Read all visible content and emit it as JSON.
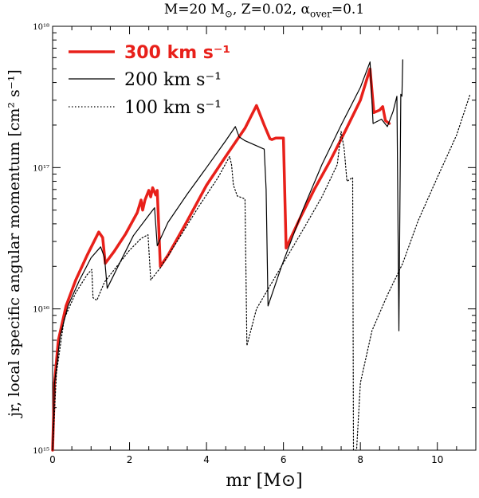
{
  "chart_data": {
    "type": "line",
    "title": "M=20 M⊙, Z=0.02, αover=0.1",
    "title_parts": {
      "mass": "M=20 M",
      "sun": "⊙",
      "z": ", Z=0.02, α",
      "sub": "over",
      "value": "=0.1"
    },
    "xlabel": "mr [M⊙]",
    "ylabel": "jr, local specific angular momentum [cm² s⁻¹]",
    "xlim": [
      0,
      11
    ],
    "ylim": [
      1000000000000000.0,
      1e+18
    ],
    "yscale": "log",
    "x_ticks": [
      "0",
      "2",
      "4",
      "6",
      "8",
      "10"
    ],
    "y_ticks": [
      "10¹⁵",
      "10¹⁶",
      "10¹⁷",
      "10¹⁸"
    ],
    "legend_position": "top-left",
    "series": [
      {
        "name": "300 km s⁻¹",
        "color": "#e8201a",
        "style": "thick",
        "points": [
          [
            0,
            1000000000000000.0
          ],
          [
            0.05,
            3000000000000000.0
          ],
          [
            0.15,
            6000000000000000.0
          ],
          [
            0.35,
            1.05e+16
          ],
          [
            0.6,
            1.6e+16
          ],
          [
            0.9,
            2.4e+16
          ],
          [
            1.2,
            3.5e+16
          ],
          [
            1.3,
            3.2e+16
          ],
          [
            1.37,
            2.1e+16
          ],
          [
            1.6,
            2.55e+16
          ],
          [
            1.9,
            3.4e+16
          ],
          [
            2.2,
            4.8e+16
          ],
          [
            2.3,
            5.9e+16
          ],
          [
            2.34,
            5e+16
          ],
          [
            2.4,
            5.9e+16
          ],
          [
            2.5,
            6.9e+16
          ],
          [
            2.55,
            6.2e+16
          ],
          [
            2.6,
            7.2e+16
          ],
          [
            2.68,
            6.4e+16
          ],
          [
            2.72,
            6.9e+16
          ],
          [
            2.8,
            2e+16
          ],
          [
            3.0,
            2.4e+16
          ],
          [
            3.5,
            4.2e+16
          ],
          [
            4.0,
            7.5e+16
          ],
          [
            4.5,
            1.2e+17
          ],
          [
            5.0,
            1.9e+17
          ],
          [
            5.3,
            2.75e+17
          ],
          [
            5.5,
            2e+17
          ],
          [
            5.65,
            1.6e+17
          ],
          [
            5.7,
            1.58e+17
          ],
          [
            5.8,
            1.62e+17
          ],
          [
            6.0,
            1.62e+17
          ],
          [
            6.07,
            2.7e+16
          ],
          [
            6.4,
            4.2e+16
          ],
          [
            6.8,
            7e+16
          ],
          [
            7.2,
            1.1e+17
          ],
          [
            7.6,
            1.8e+17
          ],
          [
            8.0,
            3e+17
          ],
          [
            8.25,
            5e+17
          ],
          [
            8.35,
            2.45e+17
          ],
          [
            8.5,
            2.55e+17
          ],
          [
            8.58,
            2.7e+17
          ],
          [
            8.65,
            2.15e+17
          ],
          [
            8.75,
            2.05e+17
          ]
        ]
      },
      {
        "name": "200 km s⁻¹",
        "color": "#000000",
        "style": "solid",
        "points": [
          [
            0,
            1000000000000000.0
          ],
          [
            0.05,
            3000000000000000.0
          ],
          [
            0.2,
            6500000000000000.0
          ],
          [
            0.4,
            1.05e+16
          ],
          [
            0.7,
            1.6e+16
          ],
          [
            1.0,
            2.3e+16
          ],
          [
            1.25,
            2.75e+16
          ],
          [
            1.35,
            2.3e+16
          ],
          [
            1.42,
            1.4e+16
          ],
          [
            1.7,
            2e+16
          ],
          [
            2.1,
            3.3e+16
          ],
          [
            2.5,
            4.6e+16
          ],
          [
            2.65,
            5.2e+16
          ],
          [
            2.72,
            2.8e+16
          ],
          [
            3.0,
            4.1e+16
          ],
          [
            3.5,
            6.5e+16
          ],
          [
            4.0,
            1e+17
          ],
          [
            4.5,
            1.55e+17
          ],
          [
            4.75,
            1.95e+17
          ],
          [
            4.85,
            1.65e+17
          ],
          [
            5.0,
            1.55e+17
          ],
          [
            5.5,
            1.35e+17
          ],
          [
            5.55,
            7e+16
          ],
          [
            5.6,
            1.05e+16
          ],
          [
            5.95,
            2e+16
          ],
          [
            6.5,
            5e+16
          ],
          [
            7.0,
            1.05e+17
          ],
          [
            7.5,
            2e+17
          ],
          [
            8.0,
            3.7e+17
          ],
          [
            8.25,
            5.6e+17
          ],
          [
            8.33,
            2.05e+17
          ],
          [
            8.55,
            2.2e+17
          ],
          [
            8.7,
            1.95e+17
          ],
          [
            8.85,
            2.5e+17
          ],
          [
            8.95,
            3.2e+17
          ],
          [
            9.0,
            7000000000000000.0
          ],
          [
            9.05,
            3.3e+17
          ],
          [
            9.08,
            3.2e+17
          ],
          [
            9.1,
            5.8e+17
          ]
        ]
      },
      {
        "name": "100 km s⁻¹",
        "color": "#000000",
        "style": "dotted",
        "points": [
          [
            0,
            1000000000000000.0
          ],
          [
            0.1,
            3500000000000000.0
          ],
          [
            0.3,
            8500000000000000.0
          ],
          [
            0.6,
            1.3e+16
          ],
          [
            0.9,
            1.75e+16
          ],
          [
            1.02,
            1.9e+16
          ],
          [
            1.05,
            1.2e+16
          ],
          [
            1.15,
            1.15e+16
          ],
          [
            1.35,
            1.55e+16
          ],
          [
            1.7,
            2.05e+16
          ],
          [
            2.0,
            2.6e+16
          ],
          [
            2.3,
            3.15e+16
          ],
          [
            2.48,
            3.35e+16
          ],
          [
            2.55,
            1.6e+16
          ],
          [
            2.8,
            1.95e+16
          ],
          [
            3.3,
            3.2e+16
          ],
          [
            3.8,
            5.3e+16
          ],
          [
            4.3,
            8.5e+16
          ],
          [
            4.6,
            1.2e+17
          ],
          [
            4.65,
            1.05e+17
          ],
          [
            4.7,
            7.5e+16
          ],
          [
            4.8,
            6.3e+16
          ],
          [
            5.0,
            6e+16
          ],
          [
            5.05,
            5500000000000000.0
          ],
          [
            5.3,
            1e+16
          ],
          [
            5.9,
            1.9e+16
          ],
          [
            6.5,
            3.6e+16
          ],
          [
            7.0,
            6.2e+16
          ],
          [
            7.4,
            1.05e+17
          ],
          [
            7.5,
            1.8e+17
          ],
          [
            7.58,
            1.35e+17
          ],
          [
            7.65,
            8e+16
          ],
          [
            7.8,
            8.5e+16
          ],
          [
            7.82,
            1000000000000000.0
          ],
          [
            7.9,
            1000000000000000.0
          ],
          [
            8.0,
            3000000000000000.0
          ],
          [
            8.3,
            7000000000000000.0
          ],
          [
            8.7,
            1.25e+16
          ],
          [
            9.1,
            2.1e+16
          ],
          [
            9.5,
            4.2e+16
          ],
          [
            10.0,
            8.5e+16
          ],
          [
            10.5,
            1.7e+17
          ],
          [
            10.85,
            3.3e+17
          ]
        ]
      }
    ]
  }
}
